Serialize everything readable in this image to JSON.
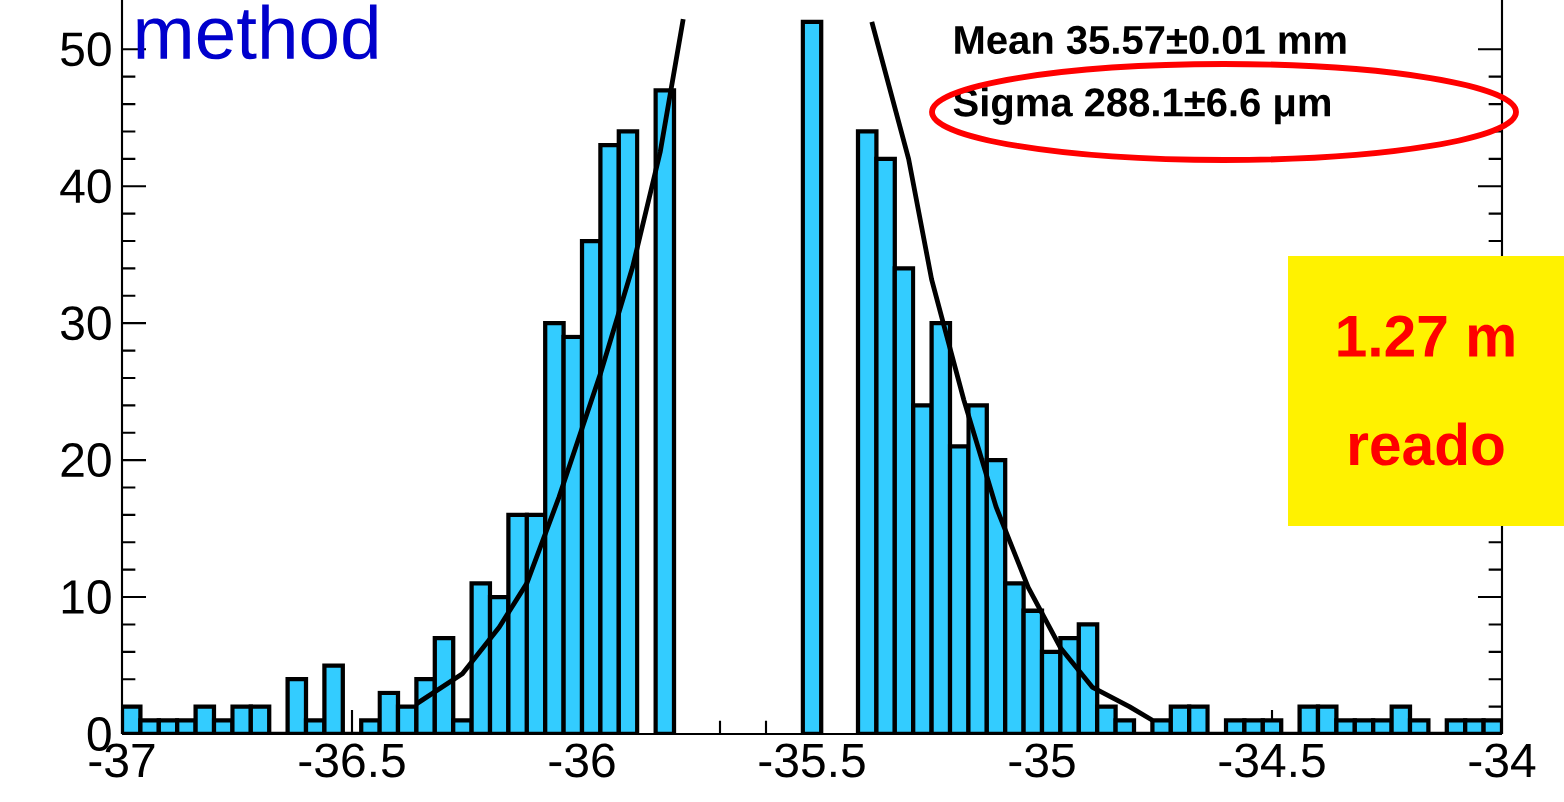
{
  "chart_data": {
    "type": "histogram",
    "bins": [
      -37,
      -36.96,
      -36.92,
      -36.88,
      -36.84,
      -36.8,
      -36.76,
      -36.72,
      -36.68,
      -36.64,
      -36.6,
      -36.56,
      -36.52,
      -36.48,
      -36.44,
      -36.4,
      -36.36,
      -36.32,
      -36.28,
      -36.24,
      -36.2,
      -36.16,
      -36.12,
      -36.08,
      -36.04,
      -36,
      -35.96,
      -35.92,
      -35.88,
      -35.84,
      -35.8,
      -35.76,
      -35.72,
      -35.68,
      -35.64,
      -35.6,
      -35.56,
      -35.52,
      -35.48,
      -35.44,
      -35.4,
      -35.36,
      -35.32,
      -35.28,
      -35.24,
      -35.2,
      -35.16,
      -35.12,
      -35.08,
      -35.04,
      -35,
      -34.96,
      -34.92,
      -34.88,
      -34.84,
      -34.8,
      -34.76,
      -34.72,
      -34.68,
      -34.64,
      -34.6,
      -34.56,
      -34.52,
      -34.48,
      -34.44,
      -34.4,
      -34.36,
      -34.32,
      -34.28,
      -34.24,
      -34.2,
      -34.16,
      -34.12,
      -34.08,
      -34.04,
      -34
    ],
    "series": [
      {
        "color": "#33ccff",
        "values": [
          2,
          1,
          1,
          1,
          2,
          1,
          2,
          2,
          0,
          4,
          1,
          5,
          0,
          1,
          3,
          2,
          4,
          7,
          1,
          11,
          10,
          16,
          16,
          30,
          29,
          36,
          43,
          44,
          null,
          47,
          null,
          null,
          null,
          null,
          null,
          null,
          null,
          52,
          null,
          null,
          44,
          42,
          34,
          24,
          30,
          21,
          24,
          20,
          11,
          9,
          6,
          7,
          8,
          2,
          1,
          0,
          1,
          2,
          2,
          0,
          1,
          1,
          1,
          0,
          2,
          2,
          1,
          1,
          1,
          2,
          1,
          0,
          1,
          1,
          1
        ]
      },
      {
        "type": "line",
        "color": "#000000",
        "x": [
          -36.36,
          -36.26,
          -36.18,
          -36.12,
          -36.05,
          -35.96,
          -35.89,
          -35.83,
          -35.78,
          -35.57,
          -35.37,
          -35.29,
          -35.24,
          -35.17,
          -35.1,
          -35.03,
          -34.96,
          -34.89,
          -34.81,
          -34.76
        ],
        "values": [
          2.2,
          4.4,
          7.8,
          11,
          17.3,
          26.3,
          34.1,
          42.5,
          52.2,
          null,
          52,
          42,
          33.2,
          24.4,
          16.6,
          10.7,
          6.3,
          3.4,
          2,
          1
        ]
      }
    ],
    "xlim": [
      -37,
      -34
    ],
    "ylim": [
      0,
      53.6
    ],
    "xticks": [
      -37,
      -36.5,
      -36,
      -35.5,
      -35,
      -34.5,
      -34
    ],
    "yticks": [
      0,
      10,
      20,
      30,
      40,
      50
    ],
    "annotations": [
      "method",
      "Mean 35.57±0.01 mm",
      "Sigma 288.1±6.6 μm",
      "1.27 m",
      "reado"
    ]
  }
}
